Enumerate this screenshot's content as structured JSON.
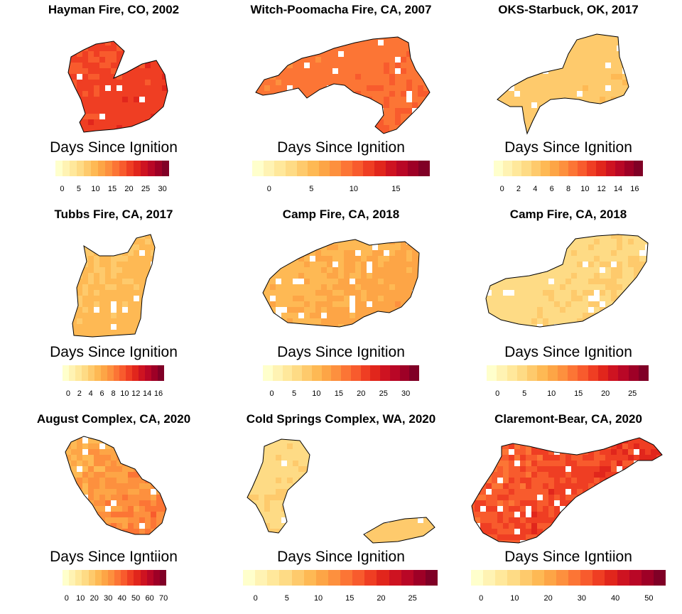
{
  "palette": [
    "#FFFFCC",
    "#FFF3B3",
    "#FFE89B",
    "#FEDB85",
    "#FECA6C",
    "#FEB954",
    "#FDA546",
    "#FD903E",
    "#FC7535",
    "#F85B2D",
    "#EF3E23",
    "#E1261C",
    "#CE1321",
    "#B90726",
    "#9E0026",
    "#800026"
  ],
  "chart_data": [
    {
      "type": "heatmap",
      "title": "Hayman Fire, CO, 2002",
      "legend_title": "Days Since Ignition",
      "ticks": [
        0,
        5,
        10,
        15,
        20,
        25,
        30
      ],
      "range": [
        -2,
        32
      ],
      "bar_tone": 0.55,
      "map_tone": [
        0.52,
        0.75
      ]
    },
    {
      "type": "heatmap",
      "title": "Witch-Poomacha Fire, CA, 2007",
      "legend_title": "Days Since Ignition",
      "ticks": [
        0,
        5,
        10,
        15
      ],
      "range": [
        -2,
        19
      ],
      "bar_tone": 0.45,
      "map_tone": [
        0.45,
        0.6
      ]
    },
    {
      "type": "heatmap",
      "title": "OKS-Starbuck, OK, 2017",
      "legend_title": "Days Since Ignition",
      "ticks": [
        0,
        2,
        4,
        6,
        8,
        10,
        12,
        14,
        16
      ],
      "range": [
        -1,
        17
      ],
      "bar_tone": 0.2,
      "map_tone": [
        0.22,
        0.32
      ]
    },
    {
      "type": "heatmap",
      "title": "Tubbs Fire, CA, 2017",
      "legend_title": "Days Since Ignition",
      "ticks": [
        0,
        2,
        4,
        6,
        8,
        10,
        12,
        14,
        16
      ],
      "range": [
        -1,
        17
      ],
      "bar_tone": 0.3,
      "map_tone": [
        0.22,
        0.38
      ]
    },
    {
      "type": "heatmap",
      "title": "Camp Fire, CA, 2018",
      "legend_title": "Days Since Ignition",
      "ticks": [
        0,
        5,
        10,
        15,
        20,
        25,
        30
      ],
      "range": [
        -2,
        33
      ],
      "bar_tone": 0.3,
      "map_tone": [
        0.25,
        0.45
      ]
    },
    {
      "type": "heatmap",
      "title": "Camp Fire, CA, 2018",
      "legend_title": "Days Since Ignition",
      "ticks": [
        0,
        5,
        10,
        15,
        20,
        25
      ],
      "range": [
        -2,
        28
      ],
      "bar_tone": 0.2,
      "map_tone": [
        0.18,
        0.26
      ]
    },
    {
      "type": "heatmap",
      "title": "August Complex, CA, 2020",
      "legend_title": "Days Since Igntiion",
      "ticks": [
        0,
        10,
        20,
        30,
        40,
        50,
        60,
        70
      ],
      "range": [
        -3,
        72
      ],
      "bar_tone": 0.4,
      "map_tone": [
        0.2,
        0.62
      ]
    },
    {
      "type": "heatmap",
      "title": "Cold Springs Complex, WA, 2020",
      "legend_title": "Days Since Ignition",
      "ticks": [
        0,
        5,
        10,
        15,
        20,
        25
      ],
      "range": [
        -2,
        29
      ],
      "bar_tone": 0.2,
      "map_tone": [
        0.18,
        0.28
      ]
    },
    {
      "type": "heatmap",
      "title": "Claremont-Bear, CA, 2020",
      "legend_title": "Days Since Igntiion",
      "ticks": [
        0,
        10,
        20,
        30,
        40,
        50
      ],
      "range": [
        -3,
        55
      ],
      "bar_tone": 0.45,
      "map_tone": [
        0.45,
        0.8
      ]
    }
  ]
}
